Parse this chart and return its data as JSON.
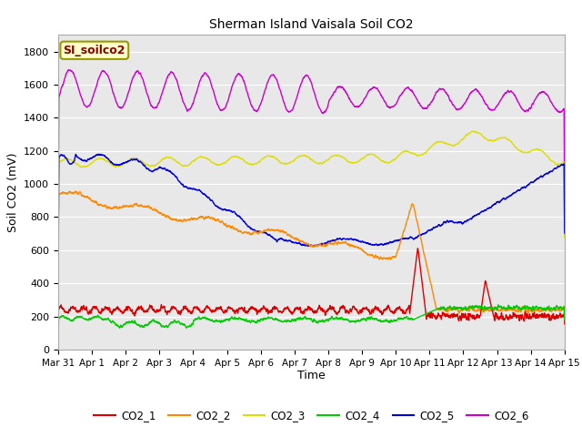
{
  "title": "Sherman Island Vaisala Soil CO2",
  "ylabel": "Soil CO2 (mV)",
  "xlabel": "Time",
  "watermark": "SI_soilco2",
  "ylim": [
    0,
    1900
  ],
  "yticks": [
    0,
    200,
    400,
    600,
    800,
    1000,
    1200,
    1400,
    1600,
    1800
  ],
  "x_labels": [
    "Mar 31",
    "Apr 1",
    "Apr 2",
    "Apr 3",
    "Apr 4",
    "Apr 5",
    "Apr 6",
    "Apr 7",
    "Apr 8",
    "Apr 9",
    "Apr 10",
    "Apr 11",
    "Apr 12",
    "Apr 13",
    "Apr 14",
    "Apr 15"
  ],
  "colors": {
    "CO2_1": "#dd0000",
    "CO2_2": "#ff8800",
    "CO2_3": "#dddd00",
    "CO2_4": "#00cc00",
    "CO2_5": "#0000dd",
    "CO2_6": "#cc00cc"
  },
  "bg_color": "#e8e8e8",
  "grid_color": "#ffffff",
  "figsize": [
    6.4,
    4.8
  ],
  "dpi": 100
}
